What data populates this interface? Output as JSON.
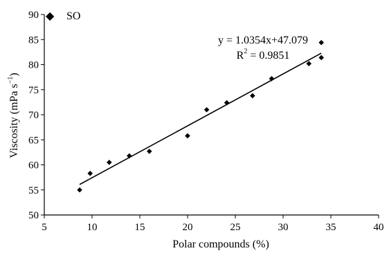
{
  "chart_data": {
    "type": "scatter",
    "title": "",
    "xlabel": "Polar compounds (%)",
    "ylabel": "Viscosity (mPa s",
    "ylabel_sup": "−1",
    "ylabel_close": ")",
    "xlim": [
      5,
      40
    ],
    "ylim": [
      50,
      90
    ],
    "xticks": [
      5,
      10,
      15,
      20,
      25,
      30,
      35,
      40
    ],
    "yticks": [
      50,
      55,
      60,
      65,
      70,
      75,
      80,
      85,
      90
    ],
    "legend": {
      "placement": "top-left",
      "marker": "◆",
      "label": "SO"
    },
    "series": [
      {
        "name": "SO",
        "points": [
          {
            "x": 8.7,
            "y": 55.0
          },
          {
            "x": 9.8,
            "y": 58.3
          },
          {
            "x": 11.8,
            "y": 60.5
          },
          {
            "x": 13.9,
            "y": 61.8
          },
          {
            "x": 16.0,
            "y": 62.7
          },
          {
            "x": 20.0,
            "y": 65.8
          },
          {
            "x": 22.0,
            "y": 71.0
          },
          {
            "x": 24.1,
            "y": 72.4
          },
          {
            "x": 26.8,
            "y": 73.8
          },
          {
            "x": 28.8,
            "y": 77.2
          },
          {
            "x": 32.7,
            "y": 80.2
          },
          {
            "x": 34.0,
            "y": 84.4
          },
          {
            "x": 34.0,
            "y": 81.4
          }
        ]
      }
    ],
    "trendline": {
      "slope": 1.0354,
      "intercept": 47.079,
      "x_range": [
        8.7,
        34.0
      ]
    },
    "annotation": {
      "equation": "y = 1.0354x+47.079",
      "r2_prefix": "R",
      "r2_sup": "2",
      "r2_value": " = 0.9851"
    }
  }
}
